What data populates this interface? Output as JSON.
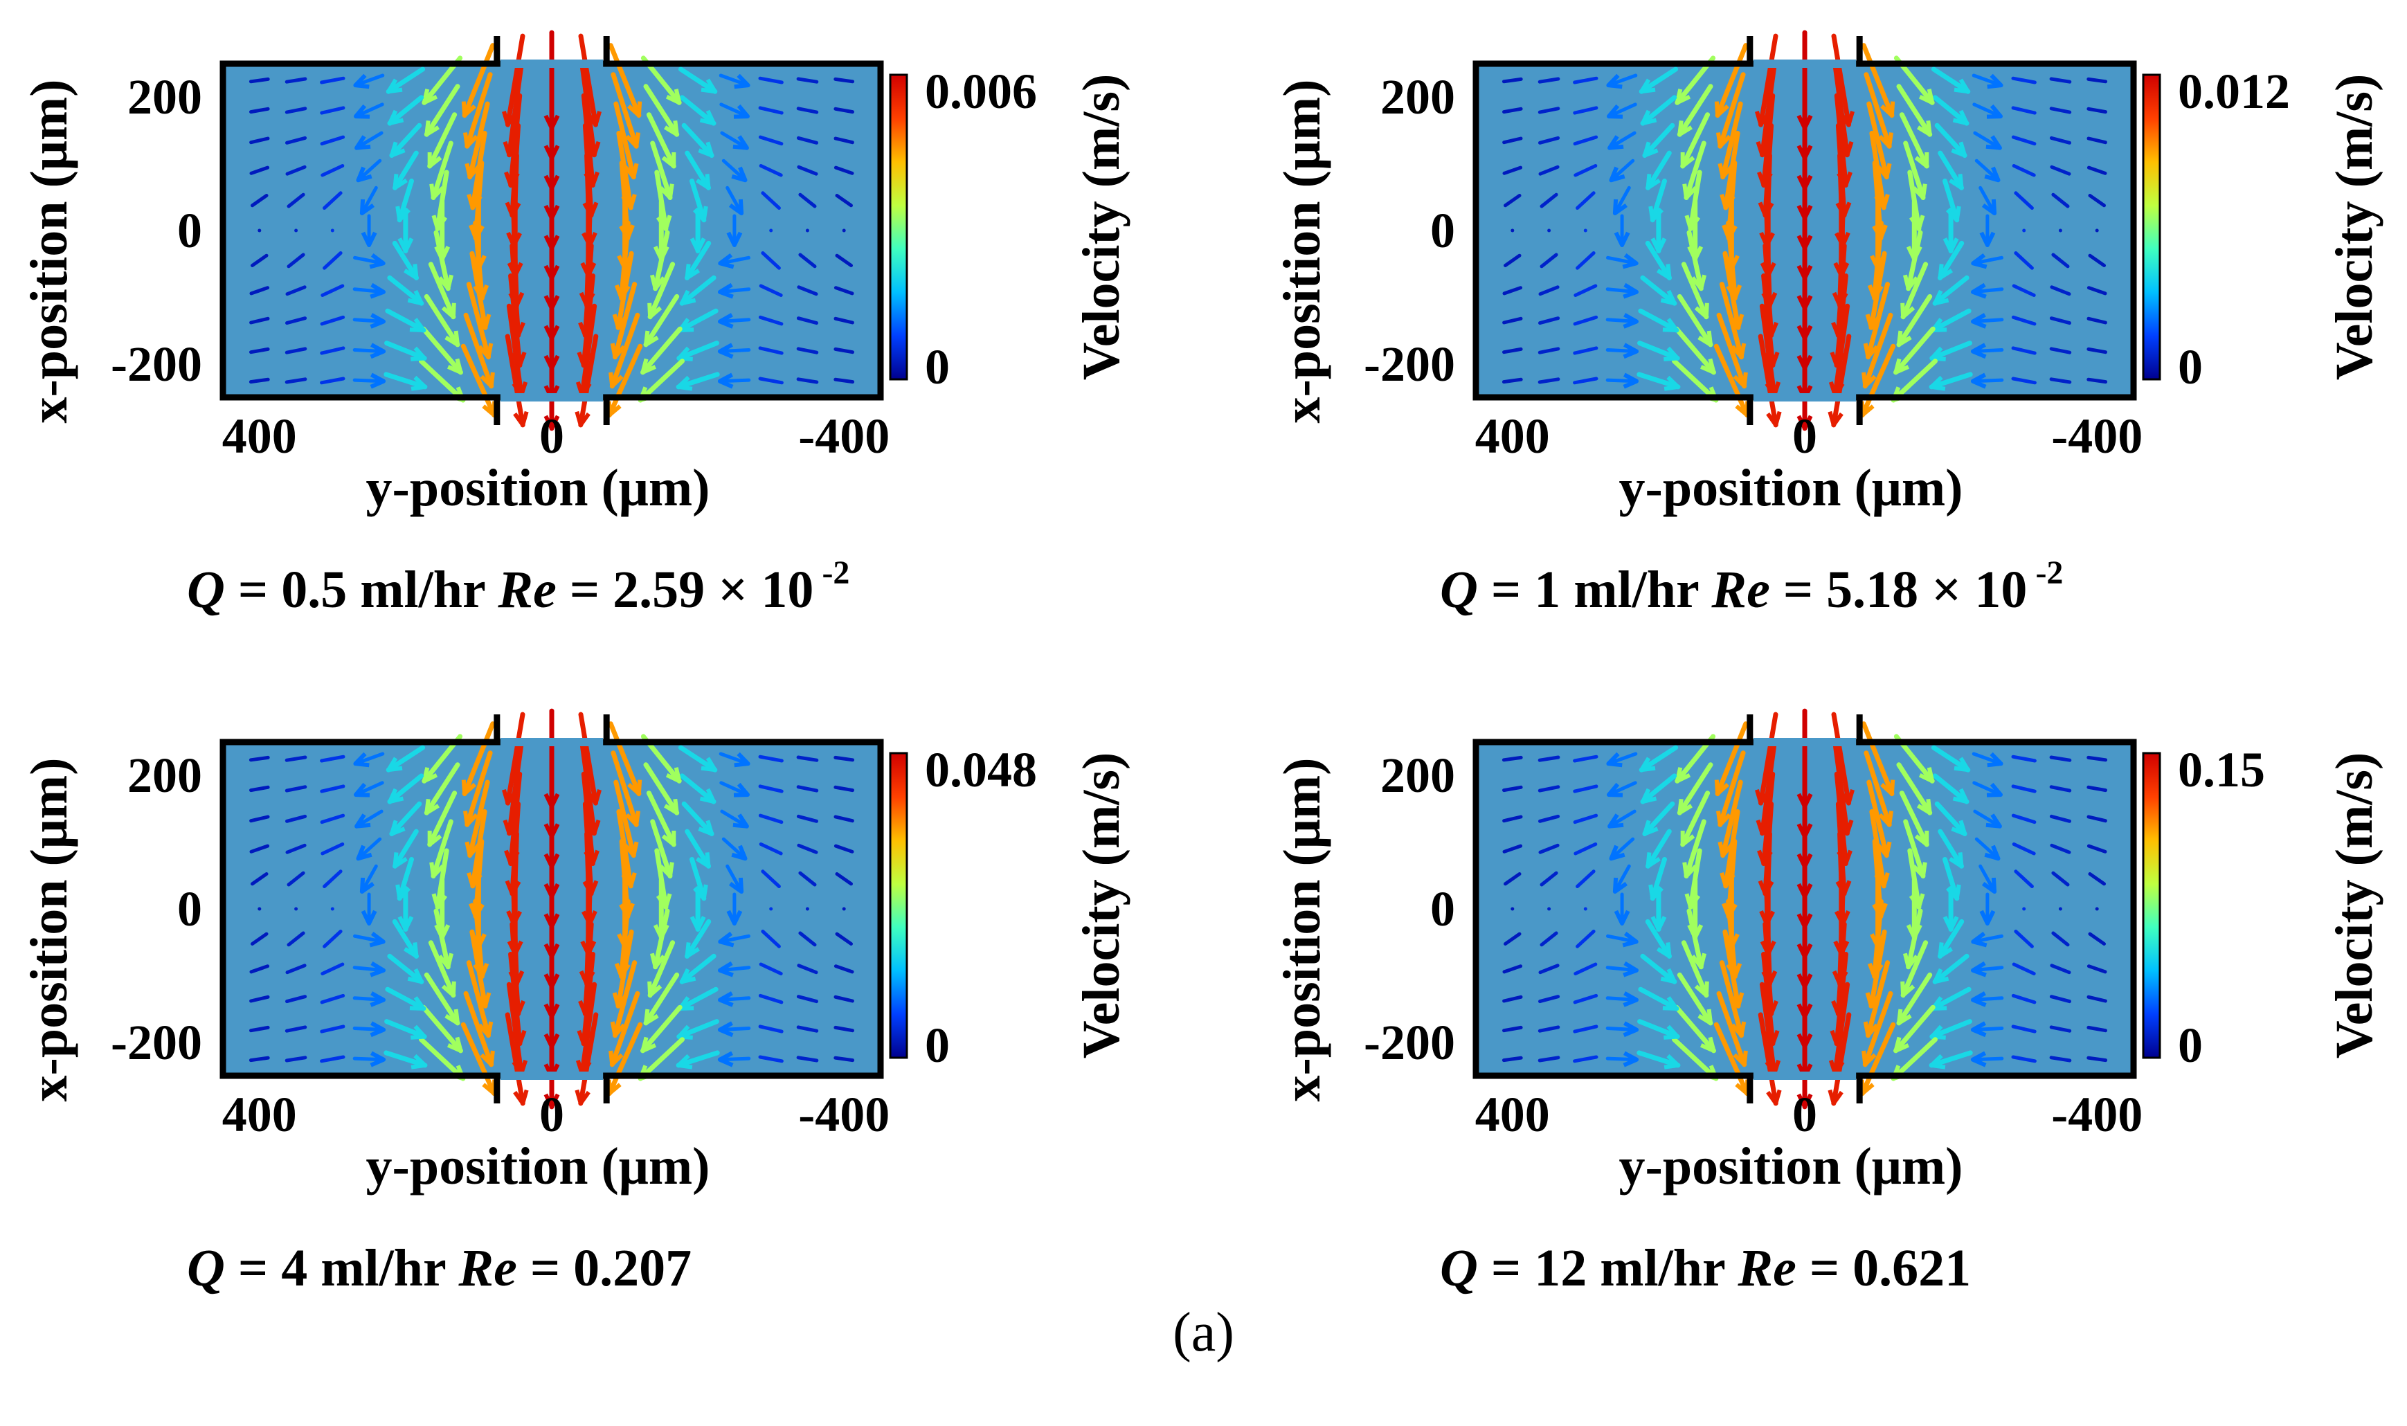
{
  "figure_label": "(a)",
  "colors": {
    "field_background": "#4a98c8",
    "frame": "#000000",
    "colormap": [
      "#00008f",
      "#0040ff",
      "#00c0ff",
      "#40ffbf",
      "#bfff40",
      "#ffbf00",
      "#ff4000",
      "#d00000"
    ]
  },
  "chart_data": [
    {
      "type": "quiver",
      "panel": "top-left",
      "x_axis_label": "y-position (μm)",
      "y_axis_label": "x-position (μm)",
      "x_ticks": [
        "400",
        "0",
        "-400"
      ],
      "y_ticks": [
        "200",
        "0",
        "-200"
      ],
      "x_range": [
        450,
        -450
      ],
      "y_range": [
        -250,
        250
      ],
      "colorbar_label": "Velocity (m/s)",
      "colorbar_min": "0",
      "colorbar_max": "0.006",
      "vmax": 0.006,
      "caption": {
        "q_symbol": "Q",
        "q_text": " = 0.5 ml/hr ",
        "re_symbol": "Re",
        "re_text": " = 2.59 × 10",
        "re_exp": " -2"
      }
    },
    {
      "type": "quiver",
      "panel": "top-right",
      "x_axis_label": "y-position (μm)",
      "y_axis_label": "x-position (μm)",
      "x_ticks": [
        "400",
        "0",
        "-400"
      ],
      "y_ticks": [
        "200",
        "0",
        "-200"
      ],
      "x_range": [
        450,
        -450
      ],
      "y_range": [
        -250,
        250
      ],
      "colorbar_label": "Velocity (m/s)",
      "colorbar_min": "0",
      "colorbar_max": "0.012",
      "vmax": 0.012,
      "caption": {
        "q_symbol": "Q",
        "q_text": " = 1 ml/hr ",
        "re_symbol": "Re",
        "re_text": " = 5.18 × 10",
        "re_exp": " -2"
      }
    },
    {
      "type": "quiver",
      "panel": "bottom-left",
      "x_axis_label": "y-position (μm)",
      "y_axis_label": "x-position (μm)",
      "x_ticks": [
        "400",
        "0",
        "-400"
      ],
      "y_ticks": [
        "200",
        "0",
        "-200"
      ],
      "x_range": [
        450,
        -450
      ],
      "y_range": [
        -250,
        250
      ],
      "colorbar_label": "Velocity (m/s)",
      "colorbar_min": "0",
      "colorbar_max": "0.048",
      "vmax": 0.048,
      "caption": {
        "q_symbol": "Q",
        "q_text": " = 4 ml/hr ",
        "re_symbol": "Re",
        "re_text": " = 0.207",
        "re_exp": ""
      }
    },
    {
      "type": "quiver",
      "panel": "bottom-right",
      "x_axis_label": "y-position (μm)",
      "y_axis_label": "x-position (μm)",
      "x_ticks": [
        "400",
        "0",
        "-400"
      ],
      "y_ticks": [
        "200",
        "0",
        "-200"
      ],
      "x_range": [
        450,
        -450
      ],
      "y_range": [
        -250,
        250
      ],
      "colorbar_label": "Velocity (m/s)",
      "colorbar_min": "0",
      "colorbar_max": "0.15",
      "vmax": 0.15,
      "caption": {
        "q_symbol": "Q",
        "q_text": " = 12 ml/hr ",
        "re_symbol": "Re",
        "re_text": " = 0.621",
        "re_exp": ""
      }
    }
  ]
}
